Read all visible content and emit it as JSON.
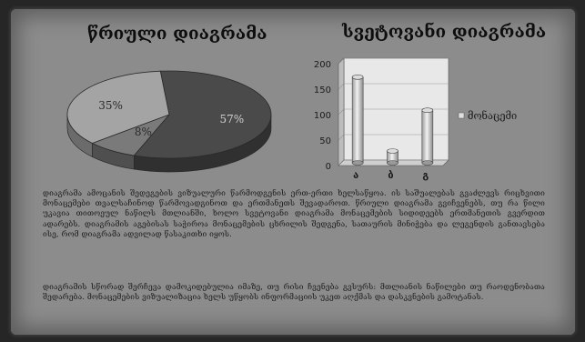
{
  "charts": {
    "pie_title": "წრიული დიაგრამა",
    "bar_title": "სვეტოვანი დიაგრამა"
  },
  "chart_data": [
    {
      "type": "pie",
      "title": "წრიული დიაგრამა",
      "slices": [
        {
          "label": "57%",
          "value": 57,
          "color": "#4a4a4a"
        },
        {
          "label": "8%",
          "value": 8,
          "color": "#7a7a7a"
        },
        {
          "label": "35%",
          "value": 35,
          "color": "#a4a4a4"
        }
      ]
    },
    {
      "type": "bar",
      "title": "სვეტოვანი დიაგრამა",
      "categories": [
        "ა",
        "ბ",
        "გ"
      ],
      "series": [
        {
          "name": "მონაცემი",
          "values": [
            170,
            25,
            105
          ]
        }
      ],
      "ylim": [
        0,
        200
      ],
      "yticks": [
        0,
        50,
        100,
        150,
        200
      ],
      "grid": true,
      "legend_position": "right"
    }
  ],
  "text": {
    "para1": "დიაგრამა ამოცანის შედეგების ვიზუალური წარმოდგენის ერთ-ერთი ხელსაწყოა. ის საშუალებას გვაძლევს რიცხვითი მონაცემები თვალსაჩინოდ წარმოვადგინოთ და ერთმანეთს შევადაროთ. წრიული დიაგრამა გვიჩვენებს, თუ რა წილი უკავია თითოეულ ნაწილს მთლიანში, ხოლო სვეტოვანი დიაგრამა მონაცემების სიდიდეებს ერთმანეთის გვერდით ადარებს. დიაგრამის აგებისას საჭიროა მონაცემების ცხრილის შედგენა, სათაურის მინიჭება და ლეგენდის განთავსება ისე, რომ დიაგრამა ადვილად წასაკითხი იყოს.",
    "para2": "დიაგრამის სწორად შერჩევა დამოკიდებულია იმაზე, თუ რისი ჩვენება გვსურს: მთლიანის ნაწილები თუ რაოდენობათა შედარება. მონაცემების ვიზუალიზაცია ხელს უწყობს ინფორმაციის უკეთ აღქმას და დასკვნების გამოტანას."
  }
}
